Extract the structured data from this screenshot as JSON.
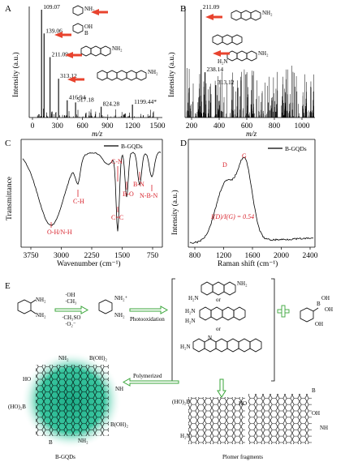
{
  "panels": {
    "a": "A",
    "b": "B",
    "c": "C",
    "d": "D",
    "e": "E"
  },
  "ms_a": {
    "ylabel": "Intensity (a.u.)",
    "xlabel": "m/z",
    "xticks": [
      "0",
      "300",
      "600",
      "900",
      "1200",
      "1500"
    ],
    "peaks": [
      {
        "mz": 109.07,
        "label": "109.07"
      },
      {
        "mz": 139.06,
        "label": "139.06"
      },
      {
        "mz": 211.09,
        "label": "211.09"
      },
      {
        "mz": 313.12,
        "label": "313.12"
      },
      {
        "mz": 416.94,
        "label": "416.94"
      },
      {
        "mz": 517.18,
        "label": "517.18"
      },
      {
        "mz": 824.28,
        "label": "824.28"
      },
      {
        "mz": 1199.44,
        "label": "1199.44*"
      }
    ],
    "chem_nh2": "NH₂",
    "chem_oh": "OH",
    "chem_b": "B"
  },
  "ms_b": {
    "ylabel": "Intensity (a.u.)",
    "xlabel": "m/z",
    "xticks": [
      "200",
      "400",
      "600",
      "800",
      "1000"
    ],
    "peaks": [
      {
        "mz": 211.09,
        "label": "211.09"
      },
      {
        "mz": 238.14,
        "label": "238.14"
      },
      {
        "mz": 313.12,
        "label": "313.12"
      }
    ]
  },
  "ftir": {
    "ylabel": "Transmittance",
    "xlabel": "Wavenumber (cm⁻¹)",
    "xticks": [
      "3750",
      "3000",
      "2250",
      "1500",
      "750"
    ],
    "legend": "B-GQDs",
    "annotations": [
      "O-H/N-H",
      "C-H",
      "C-N",
      "C=C",
      "B-O",
      "B-N",
      "N-B-N"
    ]
  },
  "raman": {
    "ylabel": "Intensity (a.u.)",
    "xlabel": "Raman shift (cm⁻¹)",
    "xticks": [
      "800",
      "1200",
      "1600",
      "2000",
      "2400"
    ],
    "legend": "B-GQDs",
    "d_label": "D",
    "g_label": "G",
    "ratio": "I(D)/I(G) = 0.54"
  },
  "scheme": {
    "oh": "·OH",
    "ch3": "·CH₃",
    "ch3so": "·CH₃SO",
    "o2": "·O₂⁻",
    "photo": "Photooxidation",
    "or": "or",
    "polymerized": "Polymerized",
    "gqd_label": "B-GQDs",
    "fragments_label": "Plomer fragments",
    "nh2": "NH₂",
    "h2n": "H₂N",
    "nh": "NH",
    "bohb": "B(OH)₂",
    "hob": "(HO)₂B",
    "n": "N",
    "ho": "HO",
    "oh2": "OH",
    "b": "B",
    "o": "O",
    "nh2plus": "NH₂⁺"
  }
}
